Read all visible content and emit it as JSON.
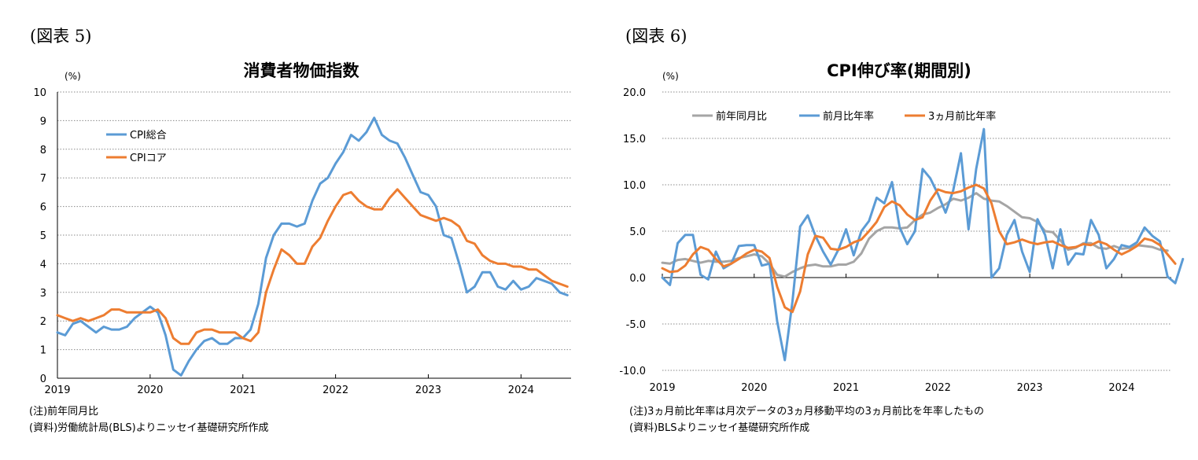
{
  "left": {
    "figure_tag": "(図表 5)",
    "notes": [
      "(注)前年同月比",
      "(資料)労働統計局(BLS)よりニッセイ基礎研究所作成"
    ]
  },
  "right": {
    "figure_tag": "(図表 6)",
    "notes": [
      "(注)3ヵ月前比年率は月次データの3ヵ月移動平均の3ヵ月前比を年率したもの",
      "(資料)BLSよりニッセイ基礎研究所作成"
    ]
  },
  "chart_data": [
    {
      "type": "line",
      "title": "消費者物価指数",
      "unit": "(%)",
      "ylim": [
        0,
        10
      ],
      "yticks": [
        0,
        1,
        2,
        3,
        4,
        5,
        6,
        7,
        8,
        9,
        10
      ],
      "ytick_labels": [
        "0",
        "1",
        "2",
        "3",
        "4",
        "5",
        "6",
        "7",
        "8",
        "9",
        "10"
      ],
      "xlim": [
        2019,
        2024.54
      ],
      "xticks": [
        2019,
        2020,
        2021,
        2022,
        2023,
        2024
      ],
      "xtick_labels": [
        "2019",
        "2020",
        "2021",
        "2022",
        "2023",
        "2024"
      ],
      "grid": true,
      "legend": "top-left",
      "x_start": "2019-01",
      "frequency": "monthly",
      "series": [
        {
          "name": "CPI総合",
          "color": "#5b9bd5",
          "values": [
            1.6,
            1.5,
            1.9,
            2.0,
            1.8,
            1.6,
            1.8,
            1.7,
            1.7,
            1.8,
            2.1,
            2.3,
            2.5,
            2.3,
            1.5,
            0.3,
            0.1,
            0.6,
            1.0,
            1.3,
            1.4,
            1.2,
            1.2,
            1.4,
            1.4,
            1.7,
            2.6,
            4.2,
            5.0,
            5.4,
            5.4,
            5.3,
            5.4,
            6.2,
            6.8,
            7.0,
            7.5,
            7.9,
            8.5,
            8.3,
            8.6,
            9.1,
            8.5,
            8.3,
            8.2,
            7.7,
            7.1,
            6.5,
            6.4,
            6.0,
            5.0,
            4.9,
            4.0,
            3.0,
            3.2,
            3.7,
            3.7,
            3.2,
            3.1,
            3.4,
            3.1,
            3.2,
            3.5,
            3.4,
            3.3,
            3.0,
            2.9
          ]
        },
        {
          "name": "CPIコア",
          "color": "#ed7d31",
          "values": [
            2.2,
            2.1,
            2.0,
            2.1,
            2.0,
            2.1,
            2.2,
            2.4,
            2.4,
            2.3,
            2.3,
            2.3,
            2.3,
            2.4,
            2.1,
            1.4,
            1.2,
            1.2,
            1.6,
            1.7,
            1.7,
            1.6,
            1.6,
            1.6,
            1.4,
            1.3,
            1.6,
            3.0,
            3.8,
            4.5,
            4.3,
            4.0,
            4.0,
            4.6,
            4.9,
            5.5,
            6.0,
            6.4,
            6.5,
            6.2,
            6.0,
            5.9,
            5.9,
            6.3,
            6.6,
            6.3,
            6.0,
            5.7,
            5.6,
            5.5,
            5.6,
            5.5,
            5.3,
            4.8,
            4.7,
            4.3,
            4.1,
            4.0,
            4.0,
            3.9,
            3.9,
            3.8,
            3.8,
            3.6,
            3.4,
            3.3,
            3.2
          ]
        }
      ]
    },
    {
      "type": "line",
      "title": "CPI伸び率(期間別)",
      "unit": "(%)",
      "ylim": [
        -10,
        20
      ],
      "yticks": [
        -10,
        -5,
        0,
        5,
        10,
        15,
        20
      ],
      "ytick_labels": [
        "-10.0",
        "-5.0",
        "0.0",
        "5.0",
        "10.0",
        "15.0",
        "20.0"
      ],
      "xlim": [
        2019,
        2024.54
      ],
      "xticks": [
        2019,
        2020,
        2021,
        2022,
        2023,
        2024
      ],
      "xtick_labels": [
        "2019",
        "2020",
        "2021",
        "2022",
        "2023",
        "2024"
      ],
      "grid": true,
      "legend": "top",
      "x_start": "2019-01",
      "frequency": "monthly",
      "series": [
        {
          "name": "前年同月比",
          "color": "#a5a5a5",
          "values": [
            1.6,
            1.5,
            1.9,
            2.0,
            1.8,
            1.6,
            1.8,
            1.7,
            1.7,
            1.8,
            2.1,
            2.3,
            2.5,
            2.3,
            1.5,
            0.3,
            0.1,
            0.6,
            1.0,
            1.3,
            1.4,
            1.2,
            1.2,
            1.4,
            1.4,
            1.7,
            2.6,
            4.2,
            5.0,
            5.4,
            5.4,
            5.3,
            5.4,
            6.2,
            6.8,
            7.0,
            7.5,
            7.9,
            8.5,
            8.3,
            8.6,
            9.1,
            8.5,
            8.3,
            8.2,
            7.7,
            7.1,
            6.5,
            6.4,
            6.0,
            5.0,
            4.9,
            4.0,
            3.0,
            3.2,
            3.7,
            3.7,
            3.2,
            3.1,
            3.4,
            3.1,
            3.2,
            3.5,
            3.4,
            3.3,
            3.0,
            2.9
          ]
        },
        {
          "name": "前月比年率",
          "color": "#5b9bd5",
          "values": [
            0.0,
            -0.8,
            3.7,
            4.6,
            4.6,
            0.3,
            -0.2,
            2.8,
            1.0,
            1.5,
            3.4,
            3.5,
            3.5,
            1.3,
            1.5,
            -4.7,
            -8.9,
            -2.6,
            5.5,
            6.7,
            4.5,
            2.8,
            1.4,
            3.0,
            5.2,
            2.4,
            5.0,
            6.1,
            8.6,
            8.0,
            10.3,
            5.4,
            3.6,
            5.0,
            11.7,
            10.7,
            9.0,
            7.0,
            9.4,
            13.4,
            5.2,
            11.7,
            16.0,
            0.0,
            1.0,
            4.6,
            6.2,
            2.8,
            0.6,
            6.3,
            4.6,
            1.0,
            5.2,
            1.4,
            2.6,
            2.5,
            6.2,
            4.6,
            1.0,
            2.0,
            3.5,
            3.3,
            3.8,
            5.4,
            4.5,
            3.9,
            0.1,
            -0.6,
            2.0
          ]
        },
        {
          "name": "3ヵ月前比年率",
          "color": "#ed7d31",
          "values": [
            1.0,
            0.6,
            0.7,
            1.3,
            2.5,
            3.3,
            3.0,
            2.0,
            1.2,
            1.5,
            2.0,
            2.6,
            3.0,
            2.8,
            2.1,
            -1.0,
            -3.2,
            -3.7,
            -1.5,
            2.5,
            4.5,
            4.3,
            3.1,
            3.0,
            3.3,
            3.8,
            4.1,
            5.0,
            6.0,
            7.6,
            8.2,
            7.8,
            6.8,
            6.2,
            6.5,
            8.3,
            9.5,
            9.2,
            9.1,
            9.3,
            9.7,
            10.0,
            9.6,
            8.0,
            5.0,
            3.6,
            3.8,
            4.1,
            3.8,
            3.6,
            3.8,
            3.9,
            3.5,
            3.2,
            3.3,
            3.6,
            3.5,
            3.9,
            3.6,
            3.0,
            2.5,
            2.9,
            3.4,
            4.2,
            4.0,
            3.5,
            2.5,
            1.5
          ]
        }
      ]
    }
  ]
}
